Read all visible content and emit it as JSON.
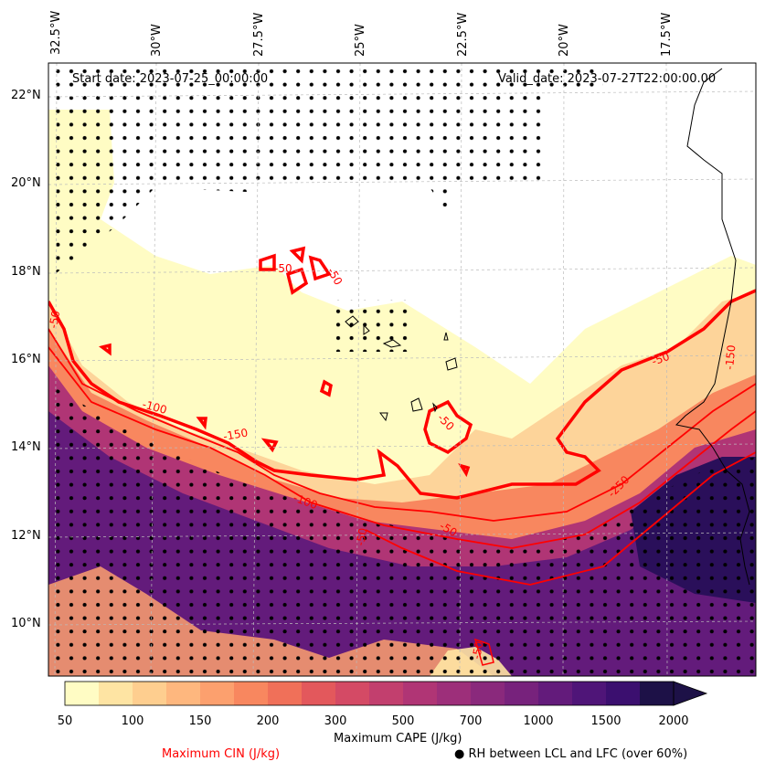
{
  "map": {
    "start_date": "Start date: 2023-07-25_00:00:00",
    "valid_date": "Valid_date: 2023-07-27T22:00:00.00",
    "lon_labels": [
      "32.5°W",
      "30°W",
      "27.5°W",
      "25°W",
      "22.5°W",
      "20°W",
      "17.5°W"
    ],
    "lat_labels": [
      "22°N",
      "20°N",
      "18°N",
      "16°N",
      "14°N",
      "12°N",
      "10°N"
    ],
    "contour_labels": [
      "-50",
      "-50",
      "-50",
      "-50",
      "-100",
      "-150",
      "-100",
      "-50",
      "-50",
      "-250",
      "-50",
      "-150",
      "-50"
    ]
  },
  "colorbar": {
    "label": "Maximum CAPE (J/kg)",
    "ticks": [
      "50",
      "100",
      "150",
      "200",
      "300",
      "500",
      "700",
      "1000",
      "1500",
      "2000"
    ],
    "colors": [
      "#fffcc4",
      "#fee4a3",
      "#fece8f",
      "#feb77e",
      "#fca06e",
      "#f8875f",
      "#f07059",
      "#e3585c",
      "#d44a65",
      "#c23f6e",
      "#b03575",
      "#9d2f7a",
      "#8a297c",
      "#77227c",
      "#631b7b",
      "#4f1578",
      "#3b0f6f",
      "#1d1147"
    ]
  },
  "legend": {
    "cin_label": "Maximum CIN (J/kg)",
    "cin_color": "#ff0000",
    "rh_label": "● RH between LCL and LFC (over 60%)"
  }
}
